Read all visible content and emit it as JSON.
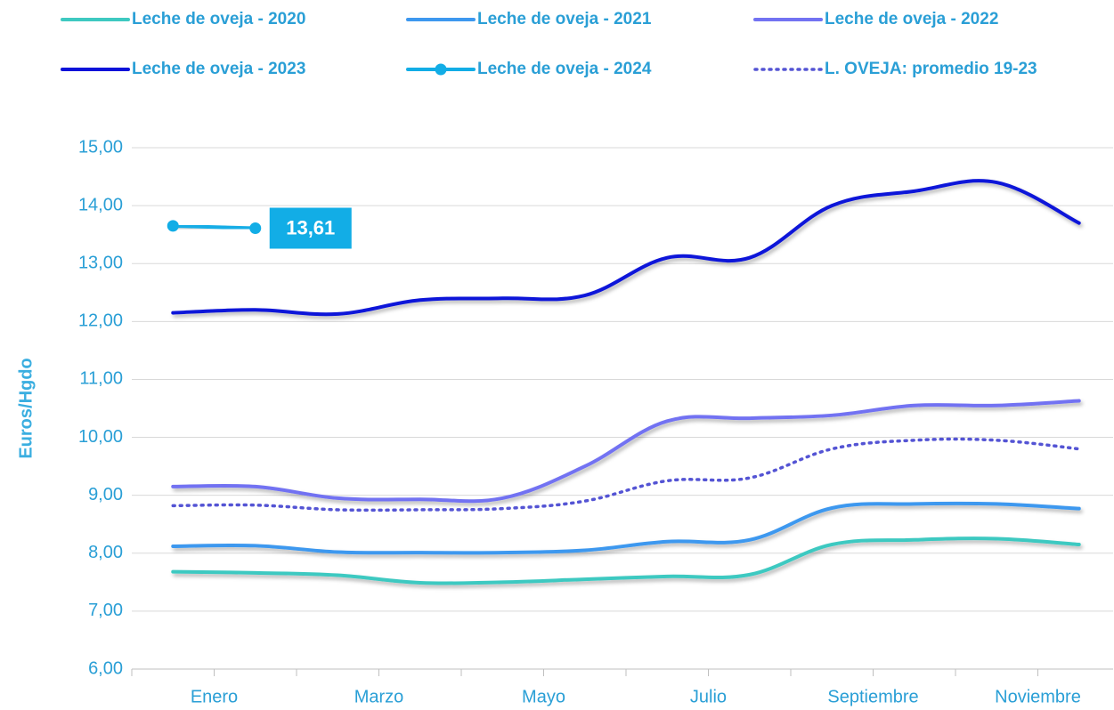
{
  "chart_data": {
    "type": "line",
    "y_label": "Euros/Hgdo",
    "categories": [
      "Enero",
      null,
      "Marzo",
      null,
      "Mayo",
      null,
      "Julio",
      null,
      "Septiembre",
      null,
      "Noviembre",
      null
    ],
    "ylim": [
      6,
      15
    ],
    "yticks": [
      {
        "value": 6,
        "label": "6,00"
      },
      {
        "value": 7,
        "label": "7,00"
      },
      {
        "value": 8,
        "label": "8,00"
      },
      {
        "value": 9,
        "label": "9,00"
      },
      {
        "value": 10,
        "label": "10,00"
      },
      {
        "value": 11,
        "label": "11,00"
      },
      {
        "value": 12,
        "label": "12,00"
      },
      {
        "value": 13,
        "label": "13,00"
      },
      {
        "value": 14,
        "label": "14,00"
      },
      {
        "value": 15,
        "label": "15,00"
      }
    ],
    "grid": true,
    "series": [
      {
        "name": "Leche de oveja - 2020",
        "color": "#3ec9c1",
        "values": [
          7.68,
          7.66,
          7.62,
          7.49,
          7.5,
          7.55,
          7.6,
          7.63,
          8.15,
          8.23,
          8.25,
          8.15
        ]
      },
      {
        "name": "Leche de oveja - 2021",
        "color": "#3d98ef",
        "values": [
          8.12,
          8.13,
          8.02,
          8.01,
          8.01,
          8.05,
          8.2,
          8.23,
          8.78,
          8.85,
          8.85,
          8.77
        ]
      },
      {
        "name": "Leche de oveja - 2022",
        "color": "#7272f2",
        "values": [
          9.15,
          9.15,
          8.95,
          8.93,
          8.95,
          9.5,
          10.28,
          10.33,
          10.38,
          10.55,
          10.55,
          10.63
        ]
      },
      {
        "name": "Leche de oveja - 2023",
        "color": "#0b12d9",
        "values": [
          12.15,
          12.2,
          12.13,
          12.37,
          12.4,
          12.45,
          13.1,
          13.1,
          14.0,
          14.25,
          14.4,
          13.7
        ]
      },
      {
        "name": "Leche de oveja - 2024",
        "color": "#12ade6",
        "marker": true,
        "values": [
          13.65,
          13.61,
          null,
          null,
          null,
          null,
          null,
          null,
          null,
          null,
          null,
          null
        ],
        "value_labels": [
          null,
          "13,61",
          null,
          null,
          null,
          null,
          null,
          null,
          null,
          null,
          null,
          null
        ]
      },
      {
        "name": "L. OVEJA: promedio 19-23",
        "color": "#5454d4",
        "dotted": true,
        "values": [
          8.82,
          8.83,
          8.75,
          8.75,
          8.77,
          8.9,
          9.25,
          9.3,
          9.8,
          9.95,
          9.95,
          9.8
        ]
      }
    ]
  }
}
